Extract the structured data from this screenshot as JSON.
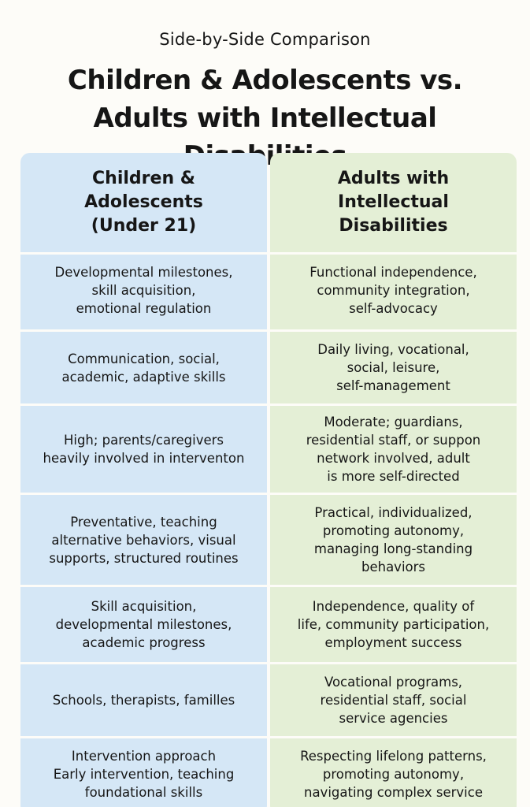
{
  "kicker": "Side-by-Side Comparison",
  "title": "Children & Adolescents vs.\nAdults with Intellectual Disabilities",
  "columns": {
    "left": {
      "header": "Children &\nAdolescents\n(Under 21)",
      "rows": [
        "Developmental milestones,\nskill acquisition,\nemotional regulation",
        "Communication, social,\nacademic, adaptive skills",
        "High; parents/caregivers\nheavily involved in interventon",
        "Preventative, teaching\nalternative behaviors, visual\nsupports, structured routines",
        "Skill acquisition,\ndevelopmental milestones,\nacademic progress",
        "Schools, therapists, familles",
        "Intervention approach\nEarly intervention, teaching\nfoundational skills"
      ]
    },
    "right": {
      "header": "Adults with\nIntellectual\nDisabilities",
      "rows": [
        "Functional independence,\ncommunity integration,\nself-advocacy",
        "Daily living, vocational,\nsocial, leisure,\nself-management",
        "Moderate; guardians,\nresidential staff, or suppon\nnetwork involved, adult\nis more self-directed",
        "Practical, individualized,\npromoting autonomy,\nmanaging long-standing\nbehaviors",
        "Independence, quality of\nlife, community participation,\nemployment success",
        "Vocational programs,\nresidential staff, social\nservice agencies",
        "Respecting lifelong patterns,\npromoting autonomy,\nnavigating complex service"
      ]
    }
  }
}
